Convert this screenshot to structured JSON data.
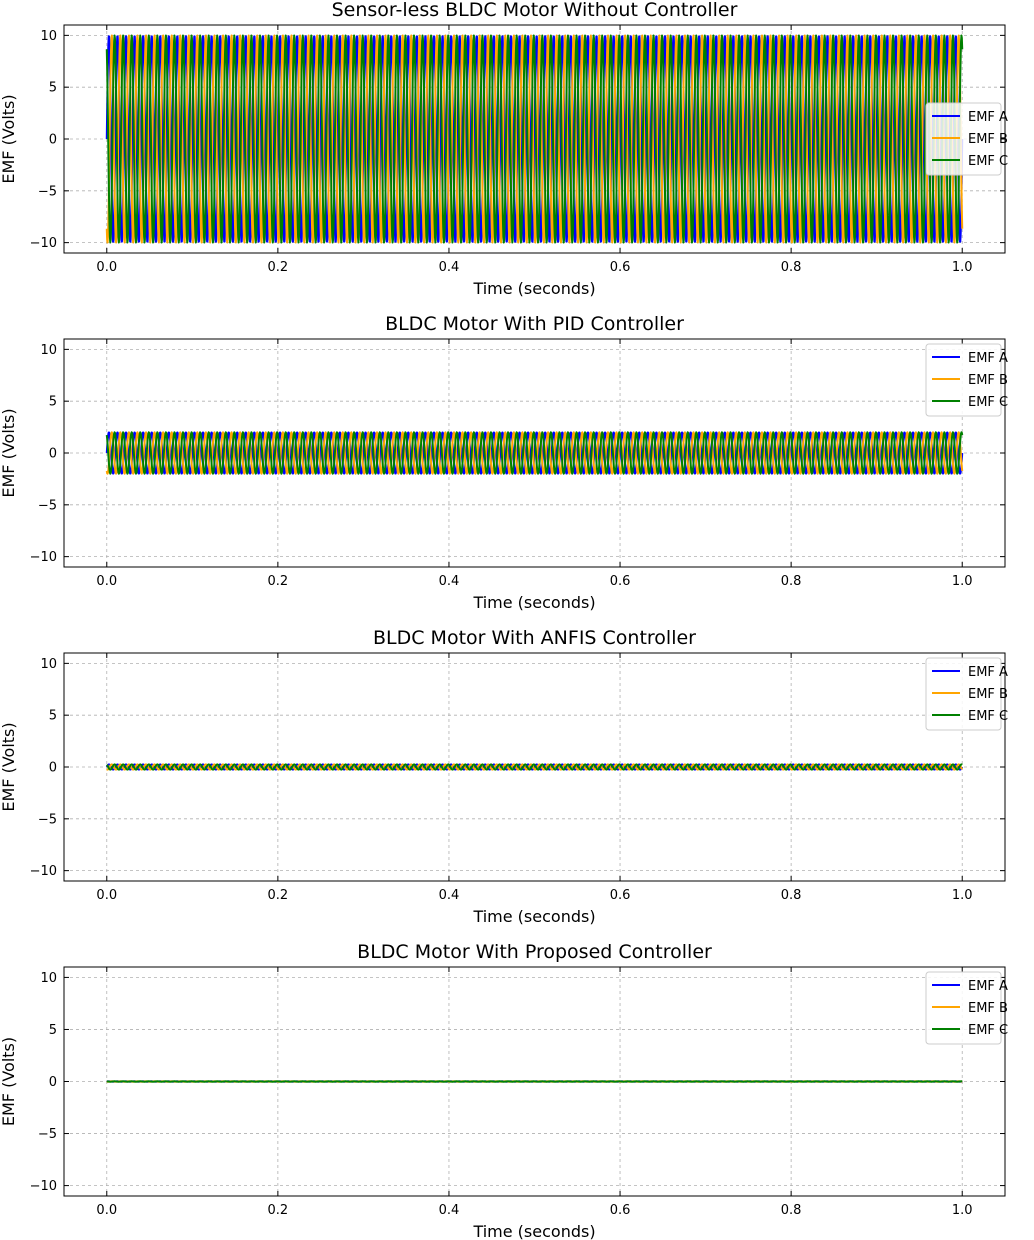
{
  "colors": {
    "emf_a": "#0000ff",
    "emf_b": "#ffa500",
    "emf_c": "#008000",
    "grid": "#b0b0b0",
    "axes": "#000000"
  },
  "chart_data": [
    {
      "type": "line",
      "title": "Sensor-less BLDC Motor Without Controller",
      "xlabel": "Time (seconds)",
      "ylabel": "EMF (Volts)",
      "xlim": [
        -0.05,
        1.05
      ],
      "ylim": [
        -11,
        11
      ],
      "xticks": [
        0.0,
        0.2,
        0.4,
        0.6,
        0.8,
        1.0
      ],
      "xtick_labels": [
        "0.0",
        "0.2",
        "0.4",
        "0.6",
        "0.8",
        "1.0"
      ],
      "yticks": [
        -10,
        -5,
        0,
        5,
        10
      ],
      "ytick_labels": [
        "−10",
        "−5",
        "0",
        "5",
        "10"
      ],
      "grid": true,
      "legend_position": "center-right",
      "series": [
        {
          "name": "EMF A",
          "amplitude": 10,
          "frequency_hz": 100,
          "phase_deg": 0
        },
        {
          "name": "EMF B",
          "amplitude": 10,
          "frequency_hz": 100,
          "phase_deg": -120
        },
        {
          "name": "EMF C",
          "amplitude": 10,
          "frequency_hz": 100,
          "phase_deg": 120
        }
      ]
    },
    {
      "type": "line",
      "title": "BLDC Motor With PID Controller",
      "xlabel": "Time (seconds)",
      "ylabel": "EMF (Volts)",
      "xlim": [
        -0.05,
        1.05
      ],
      "ylim": [
        -11,
        11
      ],
      "xticks": [
        0.0,
        0.2,
        0.4,
        0.6,
        0.8,
        1.0
      ],
      "xtick_labels": [
        "0.0",
        "0.2",
        "0.4",
        "0.6",
        "0.8",
        "1.0"
      ],
      "yticks": [
        -10,
        -5,
        0,
        5,
        10
      ],
      "ytick_labels": [
        "−10",
        "−5",
        "0",
        "5",
        "10"
      ],
      "grid": true,
      "legend_position": "top-right",
      "series": [
        {
          "name": "EMF A",
          "amplitude": 2,
          "frequency_hz": 100,
          "phase_deg": 0
        },
        {
          "name": "EMF B",
          "amplitude": 2,
          "frequency_hz": 100,
          "phase_deg": -120
        },
        {
          "name": "EMF C",
          "amplitude": 2,
          "frequency_hz": 100,
          "phase_deg": 120
        }
      ]
    },
    {
      "type": "line",
      "title": "BLDC Motor With ANFIS Controller",
      "xlabel": "Time (seconds)",
      "ylabel": "EMF (Volts)",
      "xlim": [
        -0.05,
        1.05
      ],
      "ylim": [
        -11,
        11
      ],
      "xticks": [
        0.0,
        0.2,
        0.4,
        0.6,
        0.8,
        1.0
      ],
      "xtick_labels": [
        "0.0",
        "0.2",
        "0.4",
        "0.6",
        "0.8",
        "1.0"
      ],
      "yticks": [
        -10,
        -5,
        0,
        5,
        10
      ],
      "ytick_labels": [
        "−10",
        "−5",
        "0",
        "5",
        "10"
      ],
      "grid": true,
      "legend_position": "top-right",
      "series": [
        {
          "name": "EMF A",
          "amplitude": 0.25,
          "frequency_hz": 100,
          "phase_deg": 0
        },
        {
          "name": "EMF B",
          "amplitude": 0.25,
          "frequency_hz": 100,
          "phase_deg": -120
        },
        {
          "name": "EMF C",
          "amplitude": 0.25,
          "frequency_hz": 100,
          "phase_deg": 120
        }
      ]
    },
    {
      "type": "line",
      "title": "BLDC Motor With Proposed Controller",
      "xlabel": "Time (seconds)",
      "ylabel": "EMF (Volts)",
      "xlim": [
        -0.05,
        1.05
      ],
      "ylim": [
        -11,
        11
      ],
      "xticks": [
        0.0,
        0.2,
        0.4,
        0.6,
        0.8,
        1.0
      ],
      "xtick_labels": [
        "0.0",
        "0.2",
        "0.4",
        "0.6",
        "0.8",
        "1.0"
      ],
      "yticks": [
        -10,
        -5,
        0,
        5,
        10
      ],
      "ytick_labels": [
        "−10",
        "−5",
        "0",
        "5",
        "10"
      ],
      "grid": true,
      "legend_position": "top-right",
      "series": [
        {
          "name": "EMF A",
          "amplitude": 0.02,
          "frequency_hz": 100,
          "phase_deg": 0
        },
        {
          "name": "EMF B",
          "amplitude": 0.02,
          "frequency_hz": 100,
          "phase_deg": -120
        },
        {
          "name": "EMF C",
          "amplitude": 0.02,
          "frequency_hz": 100,
          "phase_deg": 120
        }
      ]
    }
  ]
}
